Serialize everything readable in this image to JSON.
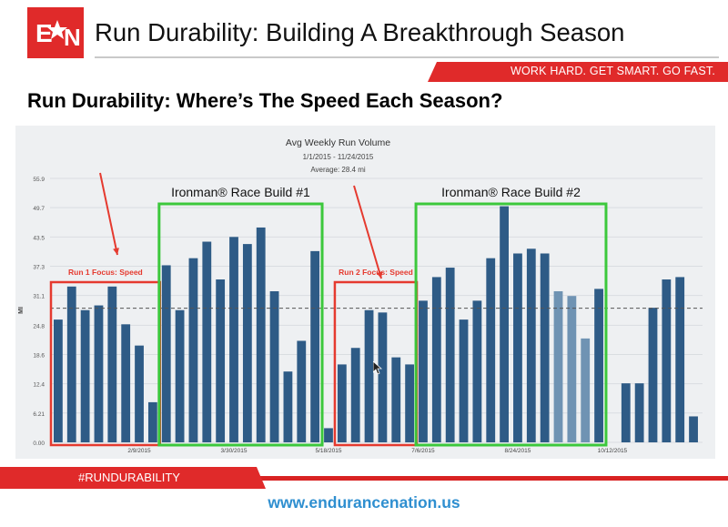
{
  "header": {
    "logo_text": "EN",
    "title": "Run Durability: Building A Breakthrough Season",
    "tagline": "WORK HARD. GET SMART. GO FAST."
  },
  "slide": {
    "subtitle": "Run Durability: Where’s The Speed Each Season?"
  },
  "chart_data": {
    "type": "bar",
    "title": "Avg Weekly Run Volume",
    "subtitle": "1/1/2015 - 11/24/2015",
    "average_label": "Average: 28.4 mi",
    "average": 28.4,
    "ylabel": "MI",
    "ylim": [
      0,
      55.9
    ],
    "yticks": [
      "0.00",
      "6.21",
      "12.4",
      "18.6",
      "24.8",
      "31.1",
      "37.3",
      "43.5",
      "49.7",
      "55.9"
    ],
    "xtick_labels": [
      "2/9/2015",
      "3/30/2015",
      "5/18/2015",
      "7/6/2015",
      "8/24/2015",
      "10/12/2015"
    ],
    "grid": true,
    "colors": {
      "bar": "#2e5b86",
      "bar_light": "#6f93b3",
      "bar_dark": "#1f3f5f",
      "box_speed": "#e53a2f",
      "box_build": "#3cc83c",
      "arrow": "#e53a2f",
      "average_line": "#555555",
      "plot_bg": "#eef0f2"
    },
    "values": [
      26.0,
      33.0,
      28.0,
      29.0,
      33.0,
      25.0,
      20.5,
      8.5,
      37.5,
      28.0,
      39.0,
      42.5,
      34.5,
      43.5,
      42.0,
      45.5,
      32.0,
      15.0,
      21.5,
      40.5,
      3.0,
      16.5,
      20.0,
      28.0,
      27.5,
      18.0,
      16.5,
      30.0,
      35.0,
      37.0,
      26.0,
      30.0,
      39.0,
      50.0,
      40.0,
      41.0,
      40.0,
      32.0,
      31.0,
      22.0,
      32.5,
      null,
      12.5,
      12.5,
      28.5,
      34.5,
      35.0,
      5.5
    ],
    "annotations": [
      {
        "text": "Run 1 Focus: Speed",
        "kind": "speed"
      },
      {
        "text": "Ironman® Race Build #1",
        "kind": "build"
      },
      {
        "text": "Run 2 Focus: Speed",
        "kind": "speed"
      },
      {
        "text": "Ironman® Race Build #2",
        "kind": "build"
      }
    ]
  },
  "footer": {
    "hashtag": "#RUNDURABILITY",
    "url": "www.endurancenation.us"
  }
}
